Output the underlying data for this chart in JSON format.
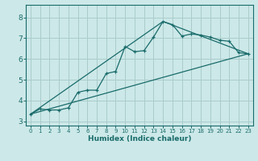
{
  "title": "",
  "xlabel": "Humidex (Indice chaleur)",
  "bg_color": "#cce8e8",
  "grid_color": "#aacccc",
  "line_color": "#1a6b6b",
  "xlim": [
    -0.5,
    23.5
  ],
  "ylim": [
    2.8,
    8.6
  ],
  "xticks": [
    0,
    1,
    2,
    3,
    4,
    5,
    6,
    7,
    8,
    9,
    10,
    11,
    12,
    13,
    14,
    15,
    16,
    17,
    18,
    19,
    20,
    21,
    22,
    23
  ],
  "yticks": [
    3,
    4,
    5,
    6,
    7,
    8
  ],
  "line1_x": [
    0,
    1,
    2,
    3,
    4,
    5,
    6,
    7,
    8,
    9,
    10,
    11,
    12,
    13,
    14,
    15,
    16,
    17,
    18,
    19,
    20,
    21,
    22,
    23
  ],
  "line1_y": [
    3.35,
    3.6,
    3.55,
    3.55,
    3.65,
    4.4,
    4.5,
    4.5,
    5.3,
    5.4,
    6.6,
    6.35,
    6.4,
    7.05,
    7.8,
    7.65,
    7.1,
    7.2,
    7.15,
    7.05,
    6.9,
    6.85,
    6.3,
    6.25
  ],
  "line2_x": [
    0,
    23
  ],
  "line2_y": [
    3.35,
    6.25
  ],
  "line3_x": [
    0,
    14,
    23
  ],
  "line3_y": [
    3.35,
    7.8,
    6.25
  ]
}
